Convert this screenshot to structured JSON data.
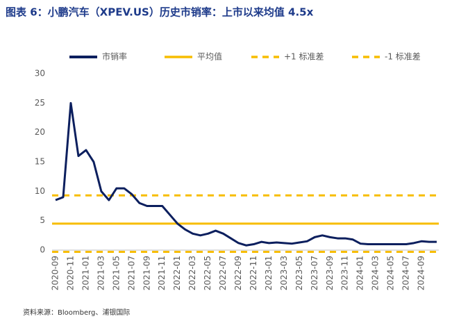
{
  "chart_data": {
    "type": "line",
    "title": "图表 6：小鹏汽车（XPEV.US）历史市销率：上市以来均值 4.5x",
    "source": "资料来源：Bloomberg、浦银国际",
    "categories": [
      "2020-09",
      null,
      "2020-11",
      null,
      "2021-01",
      null,
      "2021-03",
      null,
      "2021-05",
      null,
      "2021-07",
      null,
      "2021-09",
      null,
      "2021-11",
      null,
      "2022-01",
      null,
      "2022-03",
      null,
      "2022-05",
      null,
      "2022-07",
      null,
      "2022-09",
      null,
      "2022-11",
      null,
      "2023-01",
      null,
      "2023-03",
      null,
      "2023-05",
      null,
      "2023-07",
      null,
      "2023-09",
      null,
      "2023-11",
      null,
      "2024-01",
      null,
      "2024-03",
      null,
      "2024-05",
      null,
      "2024-07",
      null,
      "2024-09",
      null,
      null
    ],
    "series": [
      {
        "name": "市销率",
        "color": "#0c1f5e",
        "values": [
          8.5,
          9,
          25,
          16,
          17,
          15,
          10,
          8.5,
          10.5,
          10.5,
          9.5,
          8,
          7.5,
          7.5,
          7.5,
          6,
          4.5,
          3.5,
          2.8,
          2.5,
          2.8,
          3.3,
          2.8,
          2.0,
          1.2,
          0.8,
          1.0,
          1.4,
          1.2,
          1.3,
          1.2,
          1.1,
          1.3,
          1.5,
          2.2,
          2.5,
          2.2,
          2.0,
          2.0,
          1.8,
          1.1,
          1.0,
          1.0,
          1.0,
          1.0,
          1.0,
          1.0,
          1.2,
          1.5,
          1.4,
          1.4
        ]
      }
    ],
    "reference_lines": [
      {
        "name": "平均值",
        "value": 4.5,
        "color": "#f7bd00",
        "style": "solid"
      },
      {
        "name": "+1 标准差",
        "value": 9.3,
        "color": "#f7bd00",
        "style": "dashed"
      },
      {
        "name": "-1 标准差",
        "value": -0.3,
        "color": "#f7bd00",
        "style": "dashed"
      }
    ],
    "ylim": [
      0,
      30
    ],
    "yticks": [
      0,
      5,
      10,
      15,
      20,
      25,
      30
    ],
    "grid": false
  }
}
